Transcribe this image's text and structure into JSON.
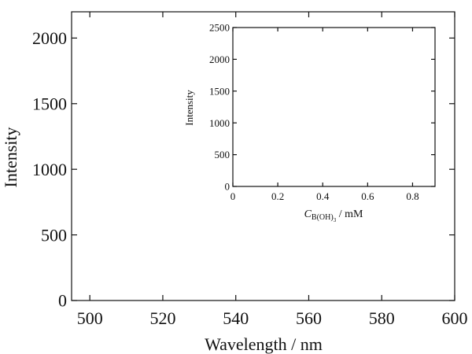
{
  "chart_data": [
    {
      "type": "line",
      "xlabel": "Wavelength / nm",
      "ylabel": "Intensity",
      "xlim": [
        495,
        600
      ],
      "ylim": [
        0,
        2200
      ],
      "x_ticks": [
        500,
        520,
        540,
        560,
        580,
        600
      ],
      "x_tick_labels": [
        "500",
        "520",
        "540",
        "560",
        "580",
        "600"
      ],
      "y_ticks": [
        0,
        500,
        1000,
        1500,
        2000
      ],
      "y_tick_labels": [
        "0",
        "500",
        "1000",
        "1500",
        "2000"
      ],
      "series": [],
      "grid": false
    },
    {
      "type": "scatter",
      "role": "inset",
      "xlabel_symbol": "C",
      "xlabel_subscript": "B(OH)",
      "xlabel_subscript2": "3",
      "xlabel_unit": " / mM",
      "ylabel": "Intensity",
      "xlim": [
        0,
        0.9
      ],
      "ylim": [
        0,
        2500
      ],
      "x_ticks": [
        0,
        0.2,
        0.4,
        0.6,
        0.8
      ],
      "x_tick_labels": [
        "0",
        "0.2",
        "0.4",
        "0.6",
        "0.8"
      ],
      "y_ticks": [
        0,
        500,
        1000,
        1500,
        2000,
        2500
      ],
      "y_tick_labels": [
        "0",
        "500",
        "1000",
        "1500",
        "2000",
        "2500"
      ],
      "series": [],
      "grid": false
    }
  ]
}
